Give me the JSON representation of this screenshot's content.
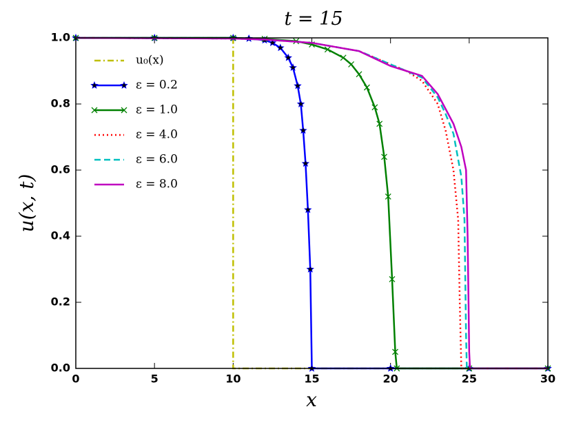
{
  "chart_data": {
    "type": "line",
    "title": "t = 15",
    "x_label": "x",
    "y_label": "u(x, t)",
    "xlim": [
      0,
      30
    ],
    "ylim": [
      0,
      1
    ],
    "xticks": [
      0,
      5,
      10,
      15,
      20,
      25,
      30
    ],
    "yticks": [
      {
        "value": 0,
        "label": "0.0"
      },
      {
        "value": 0.2,
        "label": "0.2"
      },
      {
        "value": 0.4,
        "label": "0.4"
      },
      {
        "value": 0.6,
        "label": "0.6"
      },
      {
        "value": 0.8,
        "label": "0.8"
      },
      {
        "value": 1,
        "label": "1.0"
      }
    ],
    "grid": false,
    "legend": "upper left",
    "series": [
      {
        "name": "u₀(x)",
        "color": "#bfbf00",
        "linestyle": "dashdot",
        "marker": "none",
        "x": [
          0,
          10,
          10,
          30
        ],
        "values": [
          1,
          1,
          0,
          0
        ]
      },
      {
        "name": "ε = 0.2",
        "color": "#0000ff",
        "linestyle": "solid",
        "marker": "star",
        "x": [
          0,
          5,
          10,
          11,
          12,
          12.5,
          13,
          13.5,
          13.8,
          14.1,
          14.3,
          14.45,
          14.6,
          14.75,
          14.9,
          15,
          20,
          25,
          30
        ],
        "values": [
          1,
          1,
          1,
          0.998,
          0.993,
          0.985,
          0.97,
          0.94,
          0.91,
          0.855,
          0.8,
          0.72,
          0.62,
          0.48,
          0.3,
          0,
          0,
          0,
          0
        ]
      },
      {
        "name": "ε = 1.0",
        "color": "#008000",
        "linestyle": "solid",
        "marker": "x",
        "x": [
          0,
          5,
          10,
          12,
          14,
          15,
          16,
          17,
          17.5,
          18,
          18.5,
          19,
          19.3,
          19.6,
          19.85,
          20.1,
          20.3,
          20.4,
          25,
          30
        ],
        "values": [
          1,
          1,
          1,
          0.997,
          0.99,
          0.98,
          0.965,
          0.94,
          0.92,
          0.89,
          0.85,
          0.79,
          0.74,
          0.64,
          0.52,
          0.27,
          0.05,
          0,
          0,
          0
        ]
      },
      {
        "name": "ε = 4.0",
        "color": "#ff0000",
        "linestyle": "dotted",
        "marker": "none",
        "x": [
          0,
          10,
          12,
          15,
          18,
          20,
          21,
          22,
          23,
          23.5,
          24,
          24.3,
          24.4,
          24.5,
          30
        ],
        "values": [
          1,
          0.998,
          0.995,
          0.985,
          0.96,
          0.92,
          0.9,
          0.87,
          0.8,
          0.72,
          0.6,
          0.45,
          0.2,
          0,
          0
        ]
      },
      {
        "name": "ε = 6.0",
        "color": "#00bfbf",
        "linestyle": "dashed",
        "marker": "none",
        "x": [
          0,
          10,
          12,
          15,
          18,
          20,
          21,
          22,
          23,
          23.5,
          24,
          24.5,
          24.7,
          24.8,
          24.85,
          30
        ],
        "values": [
          1,
          0.998,
          0.995,
          0.985,
          0.96,
          0.92,
          0.9,
          0.88,
          0.82,
          0.77,
          0.71,
          0.58,
          0.45,
          0.1,
          0,
          0
        ]
      },
      {
        "name": "ε = 8.0",
        "color": "#bf00bf",
        "linestyle": "solid",
        "marker": "none",
        "x": [
          0,
          10,
          12,
          15,
          18,
          20,
          21,
          22,
          23,
          24,
          24.5,
          24.8,
          24.9,
          25,
          25.05,
          30
        ],
        "values": [
          1,
          0.998,
          0.995,
          0.985,
          0.96,
          0.915,
          0.9,
          0.885,
          0.83,
          0.74,
          0.67,
          0.6,
          0.4,
          0.05,
          0,
          0
        ]
      }
    ]
  }
}
